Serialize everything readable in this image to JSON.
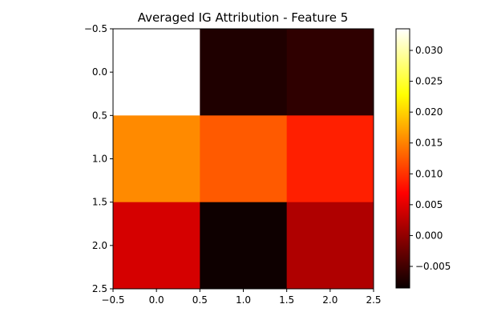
{
  "chart_data": {
    "type": "heatmap",
    "title": "Averaged IG Attribution - Feature 5",
    "xlabel": "",
    "ylabel": "",
    "colormap": "hot",
    "xlim": [
      -0.5,
      2.5
    ],
    "ylim": [
      2.5,
      -0.5
    ],
    "x_ticks": [
      -0.5,
      0.0,
      0.5,
      1.0,
      1.5,
      2.0,
      2.5
    ],
    "x_tick_labels": [
      "−0.5",
      "0.0",
      "0.5",
      "1.0",
      "1.5",
      "2.0",
      "2.5"
    ],
    "y_ticks": [
      -0.5,
      0.0,
      0.5,
      1.0,
      1.5,
      2.0,
      2.5
    ],
    "y_tick_labels": [
      "−0.5",
      "0.0",
      "0.5",
      "1.0",
      "1.5",
      "2.0",
      "2.5"
    ],
    "values": [
      [
        0.0335,
        -0.0072,
        -0.0062
      ],
      [
        0.0155,
        0.0125,
        0.0088
      ],
      [
        0.0042,
        -0.0083,
        0.0018
      ]
    ],
    "vmin": -0.0085,
    "vmax": 0.0335,
    "colorbar_ticks": [
      -0.005,
      0.0,
      0.005,
      0.01,
      0.015,
      0.02,
      0.025,
      0.03
    ],
    "colorbar_tick_labels": [
      "−0.005",
      "0.000",
      "0.005",
      "0.010",
      "0.015",
      "0.020",
      "0.025",
      "0.030"
    ],
    "grid": false
  }
}
